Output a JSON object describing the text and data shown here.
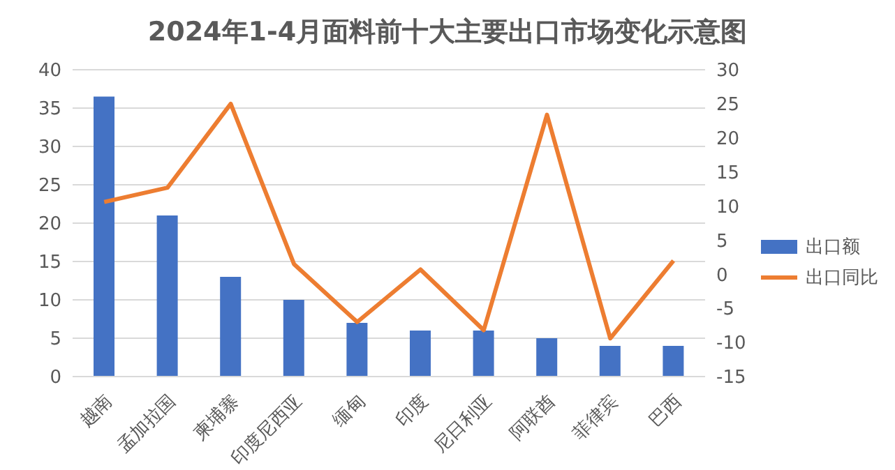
{
  "chart_data": {
    "type": "bar",
    "title": "2024年1-4月面料前十大主要出口市场变化示意图",
    "categories": [
      "越南",
      "孟加拉国",
      "柬埔寨",
      "印度尼西亚",
      "缅甸",
      "印度",
      "尼日利亚",
      "阿联酋",
      "菲律宾",
      "巴西"
    ],
    "series": [
      {
        "name": "出口额",
        "color": "#4472c4",
        "values": [
          36.5,
          21,
          13,
          10,
          7,
          6,
          6,
          5,
          4,
          4
        ]
      },
      {
        "name": "出口同比",
        "type": "line",
        "axis": "y2",
        "color": "#ed7d31",
        "values": [
          10.6,
          12.7,
          25,
          1.5,
          -7,
          0.7,
          -8.2,
          23.4,
          -9.4,
          2
        ]
      }
    ],
    "ylim": [
      0,
      40
    ],
    "yticks": [
      0,
      5,
      10,
      15,
      20,
      25,
      30,
      35,
      40
    ],
    "y2lim": [
      -15,
      30
    ],
    "y2ticks": [
      -15,
      -10,
      -5,
      0,
      5,
      10,
      15,
      20,
      25,
      30
    ],
    "grid": "y",
    "legend": "right",
    "marker": "none"
  }
}
